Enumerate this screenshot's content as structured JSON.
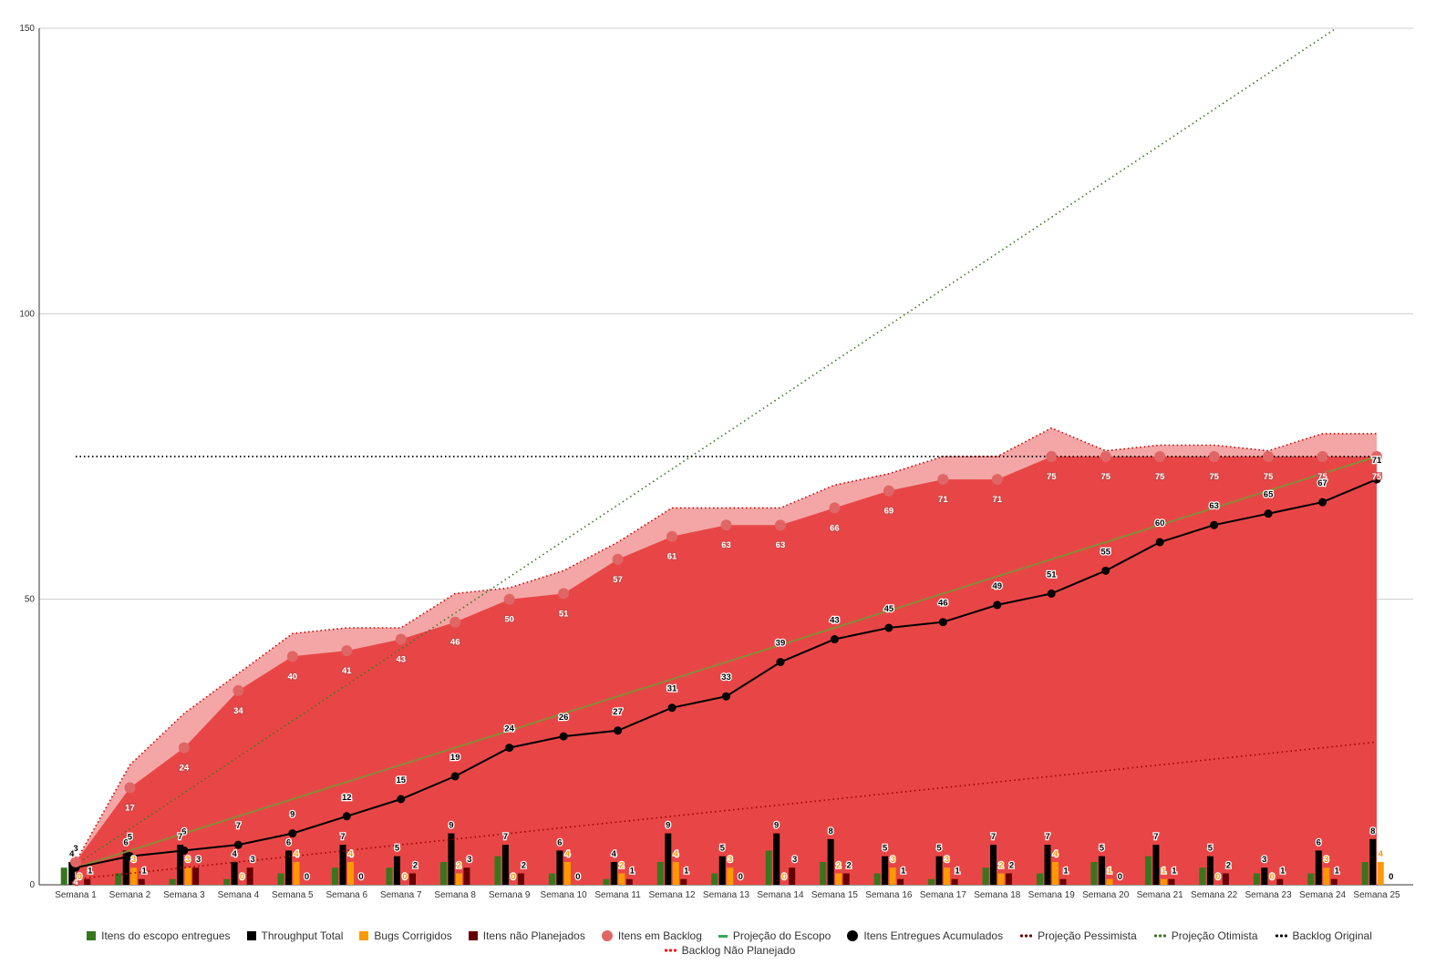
{
  "chart_data": {
    "type": "combo",
    "categories": [
      "Semana 1",
      "Semana 2",
      "Semana 3",
      "Semana 4",
      "Semana 5",
      "Semana 6",
      "Semana 7",
      "Semana 8",
      "Semana 9",
      "Semana 10",
      "Semana 11",
      "Semana 12",
      "Semana 13",
      "Semana 14",
      "Semana 15",
      "Semana 16",
      "Semana 17",
      "Semana 18",
      "Semana 19",
      "Semana 20",
      "Semana 21",
      "Semana 22",
      "Semana 23",
      "Semana 24",
      "Semana 25"
    ],
    "ylim": [
      0,
      150
    ],
    "yticks": [
      0,
      50,
      100,
      150
    ],
    "grid": true,
    "legend_position": "bottom",
    "series": [
      {
        "name": "Itens do escopo entregues",
        "kind": "bar",
        "color": "#38761d",
        "values": [
          3,
          2,
          1,
          1,
          2,
          3,
          3,
          4,
          5,
          2,
          1,
          4,
          2,
          6,
          4,
          2,
          1,
          3,
          2,
          4,
          5,
          3,
          2,
          2,
          4
        ]
      },
      {
        "name": "Throughput Total",
        "kind": "bar",
        "color": "#000000",
        "values": [
          4,
          6,
          7,
          4,
          6,
          7,
          5,
          9,
          7,
          6,
          4,
          9,
          5,
          9,
          8,
          5,
          5,
          7,
          7,
          5,
          7,
          5,
          3,
          6,
          8
        ]
      },
      {
        "name": "Bugs Corrigidos",
        "kind": "bar",
        "color": "#ff9900",
        "values": [
          0,
          3,
          3,
          0,
          4,
          4,
          0,
          2,
          0,
          4,
          2,
          4,
          3,
          0,
          2,
          3,
          3,
          2,
          4,
          1,
          1,
          0,
          0,
          3,
          4
        ]
      },
      {
        "name": "Itens não Planejados",
        "kind": "bar",
        "color": "#660000",
        "values": [
          1,
          1,
          3,
          3,
          0,
          0,
          2,
          3,
          2,
          0,
          1,
          1,
          0,
          3,
          2,
          1,
          1,
          2,
          1,
          0,
          1,
          2,
          1,
          1,
          0
        ]
      },
      {
        "name": "Itens em Backlog",
        "kind": "area-points",
        "color": "#e06666",
        "values": [
          4,
          17,
          24,
          34,
          40,
          41,
          43,
          46,
          50,
          51,
          57,
          61,
          63,
          63,
          66,
          69,
          71,
          71,
          75,
          75,
          75,
          75,
          75,
          75,
          75
        ]
      },
      {
        "name": "Projeção do Escopo",
        "kind": "line",
        "color": "#6aa84f",
        "values": [
          3,
          6,
          9,
          12,
          15,
          18,
          21,
          24,
          27,
          30,
          33,
          36,
          39,
          42,
          45,
          48,
          51,
          54,
          57,
          60,
          63,
          66,
          69,
          72,
          75
        ]
      },
      {
        "name": "Itens Entregues Acumulados",
        "kind": "line-points",
        "color": "#000000",
        "values": [
          3,
          5,
          6,
          7,
          9,
          12,
          15,
          19,
          24,
          26,
          27,
          31,
          33,
          39,
          43,
          45,
          46,
          49,
          51,
          55,
          60,
          63,
          65,
          67,
          71
        ]
      },
      {
        "name": "Projeção Pessimista",
        "kind": "dotted",
        "color": "#990000",
        "values": [
          1,
          2,
          3,
          4,
          5,
          6,
          7,
          8,
          9,
          10,
          11,
          12,
          13,
          14,
          15,
          16,
          17,
          18,
          19,
          20,
          21,
          22,
          23,
          24,
          25
        ]
      },
      {
        "name": "Projeção Otimista",
        "kind": "dotted",
        "color": "#38761d",
        "values": [
          3.5,
          9.8,
          16.1,
          22.4,
          28.7,
          35,
          41.3,
          47.6,
          53.9,
          60.2,
          66.5,
          72.8,
          79.1,
          85.4,
          91.7,
          98,
          104.3,
          110.6,
          116.9,
          123.2,
          129.5,
          135.8,
          142.1,
          148.4,
          154.7
        ]
      },
      {
        "name": "Backlog Original",
        "kind": "dotted",
        "color": "#000000",
        "values": [
          75,
          75,
          75,
          75,
          75,
          75,
          75,
          75,
          75,
          75,
          75,
          75,
          75,
          75,
          75,
          75,
          75,
          75,
          75,
          75,
          75,
          75,
          75,
          75,
          75
        ]
      },
      {
        "name": "Backlog Não Planejado",
        "kind": "dotted-area",
        "color": "#e06666",
        "values": [
          4,
          21,
          30,
          37,
          44,
          45,
          45,
          51,
          52,
          55,
          60,
          66,
          66,
          66,
          70,
          72,
          75,
          75,
          80,
          76,
          77,
          77,
          76,
          79,
          79
        ]
      }
    ]
  },
  "legend": [
    {
      "label": "Itens do escopo entregues",
      "color": "#38761d",
      "shape": "box"
    },
    {
      "label": "Throughput Total",
      "color": "#000000",
      "shape": "box"
    },
    {
      "label": "Bugs Corrigidos",
      "color": "#ff9900",
      "shape": "box"
    },
    {
      "label": "Itens não Planejados",
      "color": "#660000",
      "shape": "box"
    },
    {
      "label": "Itens em Backlog",
      "color": "#e06666",
      "shape": "dot"
    },
    {
      "label": "Projeção do Escopo",
      "color": "#34a853",
      "shape": "line"
    },
    {
      "label": "Itens Entregues Acumulados",
      "color": "#000000",
      "shape": "dot"
    },
    {
      "label": "Projeção Pessimista",
      "color": "#660000",
      "shape": "dots"
    },
    {
      "label": "Projeção Otimista",
      "color": "#38761d",
      "shape": "dots"
    },
    {
      "label": "Backlog Original",
      "color": "#000000",
      "shape": "dots"
    },
    {
      "label": "Backlog Não Planejado",
      "color": "#ff0000",
      "shape": "dots"
    }
  ]
}
